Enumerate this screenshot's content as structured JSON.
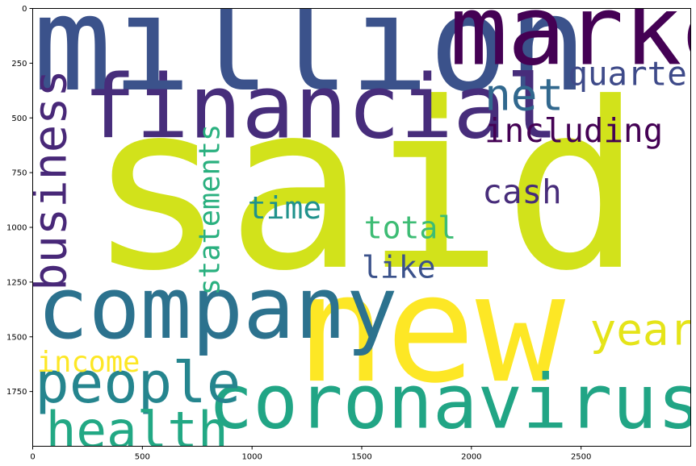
{
  "chart_data": {
    "type": "wordcloud",
    "title": "",
    "xlabel": "",
    "ylabel": "",
    "xlim": [
      0,
      3000
    ],
    "ylim": [
      2000,
      0
    ],
    "x_ticks": [
      0,
      500,
      1000,
      1500,
      2000,
      2500
    ],
    "y_ticks": [
      0,
      250,
      500,
      750,
      1000,
      1250,
      1500,
      1750
    ],
    "grid": false,
    "words": [
      {
        "text": "said",
        "x": 250,
        "y": 1180,
        "size": 1050,
        "color": "#d2e21b",
        "orientation": "horizontal"
      },
      {
        "text": "new",
        "x": 1200,
        "y": 1700,
        "size": 680,
        "color": "#fde725",
        "orientation": "horizontal"
      },
      {
        "text": "million",
        "x": 0,
        "y": 370,
        "size": 600,
        "color": "#3b528b",
        "orientation": "horizontal"
      },
      {
        "text": "market",
        "x": 1900,
        "y": 255,
        "size": 440,
        "color": "#440154",
        "orientation": "horizontal"
      },
      {
        "text": "financial",
        "x": 230,
        "y": 590,
        "size": 400,
        "color": "#472d7b",
        "orientation": "horizontal"
      },
      {
        "text": "company",
        "x": 20,
        "y": 1505,
        "size": 390,
        "color": "#2c728e",
        "orientation": "horizontal"
      },
      {
        "text": "coronavirus",
        "x": 800,
        "y": 1915,
        "size": 340,
        "color": "#21a585",
        "orientation": "horizontal"
      },
      {
        "text": "people",
        "x": 10,
        "y": 1800,
        "size": 260,
        "color": "#25858e",
        "orientation": "horizontal"
      },
      {
        "text": "health",
        "x": 60,
        "y": 2005,
        "size": 230,
        "color": "#22a884",
        "orientation": "horizontal"
      },
      {
        "text": "business",
        "x": 150,
        "y": 1290,
        "size": 210,
        "color": "#482878",
        "orientation": "vertical"
      },
      {
        "text": "net",
        "x": 2060,
        "y": 465,
        "size": 200,
        "color": "#31688e",
        "orientation": "horizontal"
      },
      {
        "text": "year",
        "x": 2540,
        "y": 1535,
        "size": 200,
        "color": "#e5e419",
        "orientation": "horizontal"
      },
      {
        "text": "quarter",
        "x": 2440,
        "y": 350,
        "size": 150,
        "color": "#3e4a89",
        "orientation": "horizontal"
      },
      {
        "text": "including",
        "x": 2060,
        "y": 610,
        "size": 150,
        "color": "#440154",
        "orientation": "horizontal"
      },
      {
        "text": "cash",
        "x": 2050,
        "y": 890,
        "size": 150,
        "color": "#472c7a",
        "orientation": "horizontal"
      },
      {
        "text": "time",
        "x": 980,
        "y": 960,
        "size": 140,
        "color": "#20928c",
        "orientation": "horizontal"
      },
      {
        "text": "total",
        "x": 1510,
        "y": 1050,
        "size": 140,
        "color": "#3dbc74",
        "orientation": "horizontal"
      },
      {
        "text": "like",
        "x": 1500,
        "y": 1230,
        "size": 140,
        "color": "#3b528b",
        "orientation": "horizontal"
      },
      {
        "text": "statements",
        "x": 850,
        "y": 1310,
        "size": 130,
        "color": "#2ab07f",
        "orientation": "vertical"
      },
      {
        "text": "income",
        "x": 20,
        "y": 1660,
        "size": 130,
        "color": "#fde725",
        "orientation": "horizontal"
      }
    ]
  }
}
